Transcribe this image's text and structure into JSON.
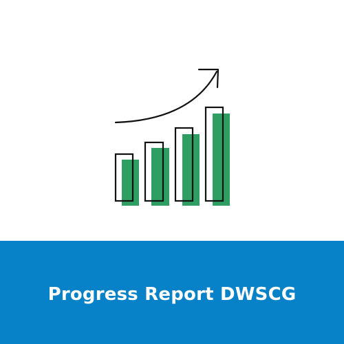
{
  "banner": {
    "title": "Progress Report DWSCG"
  },
  "colors": {
    "background": "#ffffff",
    "banner": "#0781c7",
    "bar_fill": "#2e9e63",
    "outline": "#111111"
  },
  "icon": {
    "name": "growth-bar-chart-with-rising-arrow-icon",
    "bar_levels": [
      0.45,
      0.55,
      0.68,
      0.85
    ]
  }
}
